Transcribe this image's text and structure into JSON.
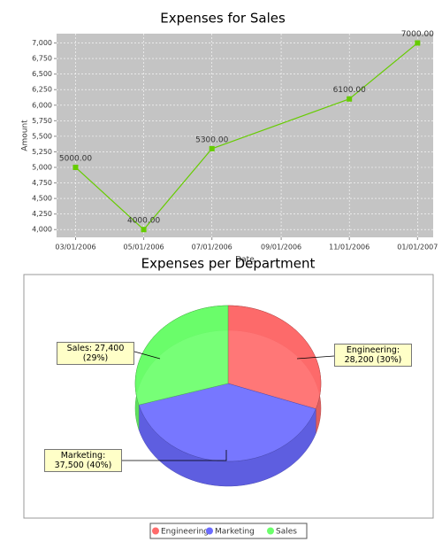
{
  "chart_data": [
    {
      "type": "line",
      "title": "Expenses for Sales",
      "x_label": "Date",
      "y_label": "Amount",
      "x": [
        "03/01/2006",
        "05/01/2006",
        "07/01/2006",
        "11/01/2006",
        "01/01/2007"
      ],
      "values": [
        5000,
        4000,
        5300,
        6100,
        7000
      ],
      "value_labels": [
        "5000.00",
        "4000.00",
        "5300.00",
        "6100.00",
        "7000.00"
      ],
      "color": "#66cc00",
      "xlim": [
        "02/12/2006",
        "01/15/2007"
      ],
      "xticks": [
        "03/01/2006",
        "05/01/2006",
        "07/01/2006",
        "09/01/2006",
        "11/01/2006",
        "01/01/2007"
      ],
      "ylim": [
        3875,
        7150
      ],
      "yticks": [
        {
          "value": 4000,
          "label": "4,000"
        },
        {
          "value": 4250,
          "label": "4,250"
        },
        {
          "value": 4500,
          "label": "4,500"
        },
        {
          "value": 4750,
          "label": "4,750"
        },
        {
          "value": 5000,
          "label": "5,000"
        },
        {
          "value": 5250,
          "label": "5,250"
        },
        {
          "value": 5500,
          "label": "5,500"
        },
        {
          "value": 5750,
          "label": "5,750"
        },
        {
          "value": 6000,
          "label": "6,000"
        },
        {
          "value": 6250,
          "label": "6,250"
        },
        {
          "value": 6500,
          "label": "6,500"
        },
        {
          "value": 6750,
          "label": "6,750"
        },
        {
          "value": 7000,
          "label": "7,000"
        }
      ],
      "grid": true
    },
    {
      "type": "pie",
      "title": "Expenses per Department",
      "categories": [
        "Engineering",
        "Marketing",
        "Sales"
      ],
      "values": [
        28200,
        37500,
        27400
      ],
      "value_labels": [
        "Engineering: 28,200 (30%)",
        "Marketing: 37,500 (40%)",
        "Sales: 27,400 (29%)"
      ],
      "colors": [
        "#ff6b6b",
        "#6b6bff",
        "#6bff6b"
      ],
      "legend": "bottom"
    }
  ]
}
